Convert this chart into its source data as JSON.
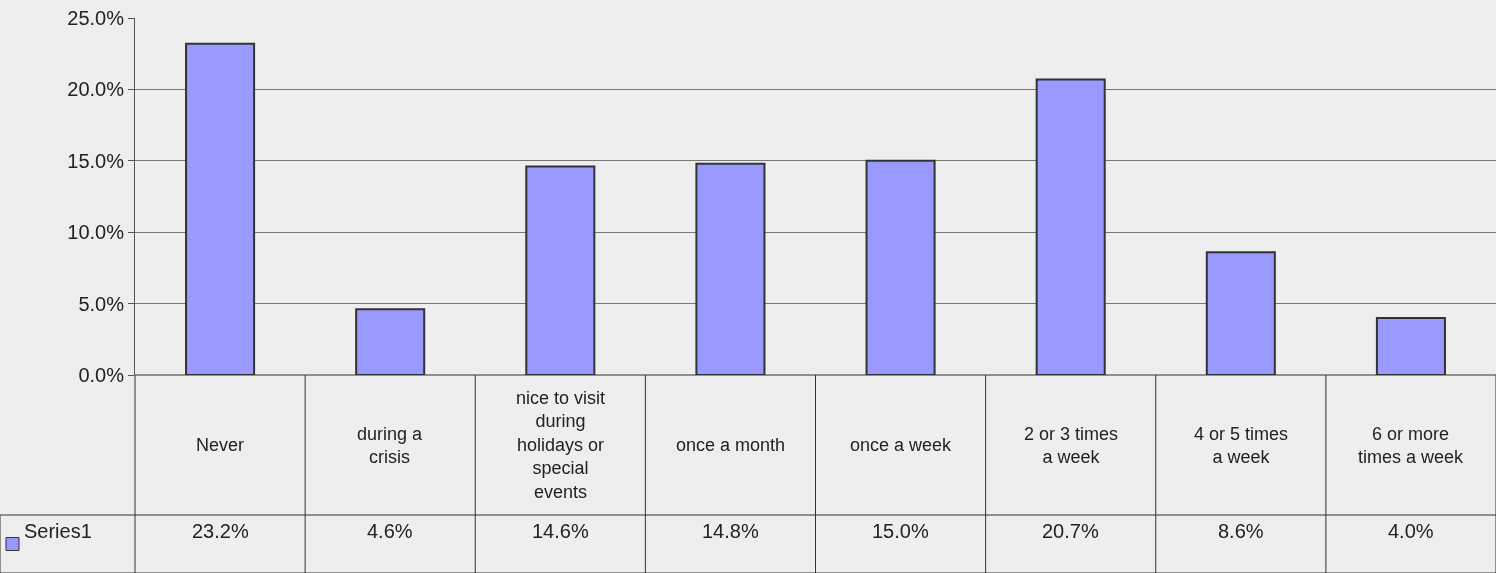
{
  "chart_data": {
    "type": "bar",
    "categories": [
      "Never",
      "during a crisis",
      "nice to visit during holidays or special events",
      "once a month",
      "once a week",
      "2 or 3 times a week",
      "4 or 5 times a week",
      "6 or more times a week"
    ],
    "series": [
      {
        "name": "Series1",
        "color": "#9999ff",
        "values": [
          23.2,
          4.6,
          14.6,
          14.8,
          15.0,
          20.7,
          8.6,
          4.0
        ],
        "value_labels": [
          "23.2%",
          "4.6%",
          "14.6%",
          "14.8%",
          "15.0%",
          "20.7%",
          "8.6%",
          "4.0%"
        ]
      }
    ],
    "ylim": [
      0,
      25
    ],
    "yticks": [
      {
        "value": 0,
        "label": "0.0%"
      },
      {
        "value": 5,
        "label": "5.0%"
      },
      {
        "value": 10,
        "label": "10.0%"
      },
      {
        "value": 15,
        "label": "15.0%"
      },
      {
        "value": 20,
        "label": "20.0%"
      },
      {
        "value": 25,
        "label": "25.0%"
      }
    ],
    "grid": "y"
  }
}
